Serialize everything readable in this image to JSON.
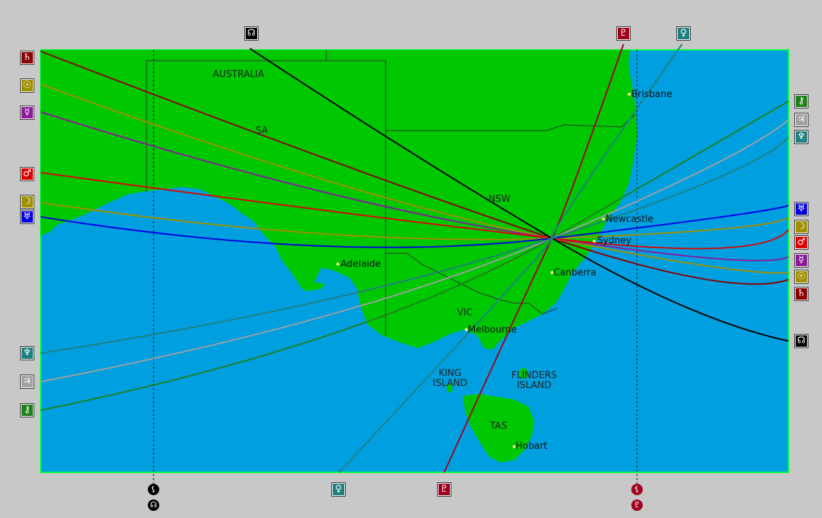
{
  "colors": {
    "window_bg": "#c8c8c8",
    "ocean": "#00a0e0",
    "land": "#00c800",
    "border": "#333333",
    "map_frame": "#00ff40"
  },
  "regions": [
    {
      "key": "australia",
      "text": "AUSTRALIA"
    },
    {
      "key": "sa",
      "text": "SA"
    },
    {
      "key": "nsw",
      "text": "NSW"
    },
    {
      "key": "vic",
      "text": "VIC"
    },
    {
      "key": "king",
      "text": "KING\nISLAND"
    },
    {
      "key": "flinders",
      "text": "FLINDERS\nISLAND"
    },
    {
      "key": "tas",
      "text": "TAS"
    }
  ],
  "cities": [
    {
      "key": "brisbane",
      "text": "Brisbane"
    },
    {
      "key": "newcastle",
      "text": "Newcastle"
    },
    {
      "key": "sydney",
      "text": "Sydney"
    },
    {
      "key": "canberra",
      "text": "Canberra"
    },
    {
      "key": "adelaide",
      "text": "Adelaide"
    },
    {
      "key": "melbourne",
      "text": "Melbourne"
    },
    {
      "key": "hobart",
      "text": "Hobart"
    }
  ],
  "planet_lines": [
    {
      "planet": "saturn",
      "symbol": "♄",
      "color": "#8b0000"
    },
    {
      "planet": "sun",
      "symbol": "☉",
      "color": "#a09000"
    },
    {
      "planet": "mercury",
      "symbol": "☿",
      "color": "#8b1a9b"
    },
    {
      "planet": "mars",
      "symbol": "♂",
      "color": "#e00000"
    },
    {
      "planet": "moon",
      "symbol": "☽",
      "color": "#a09000"
    },
    {
      "planet": "uranus",
      "symbol": "♅",
      "color": "#0000e0"
    },
    {
      "planet": "node",
      "symbol": "☊",
      "color": "#000000"
    },
    {
      "planet": "pluto",
      "symbol": "♇",
      "color": "#a00020"
    },
    {
      "planet": "venus",
      "symbol": "♀",
      "color": "#208080"
    },
    {
      "planet": "chiron",
      "symbol": "⚷",
      "color": "#208020"
    },
    {
      "planet": "jupiter",
      "symbol": "♃",
      "color": "#a0a0a0"
    },
    {
      "planet": "neptune",
      "symbol": "♆",
      "color": "#208080"
    }
  ],
  "bottom_markers": [
    {
      "key": "left",
      "top_symbol": "⚸",
      "bottom_symbol": "☊",
      "color": "#000000"
    },
    {
      "key": "right",
      "top_symbol": "⚸",
      "bottom_symbol": "♇",
      "color": "#a00020"
    }
  ]
}
